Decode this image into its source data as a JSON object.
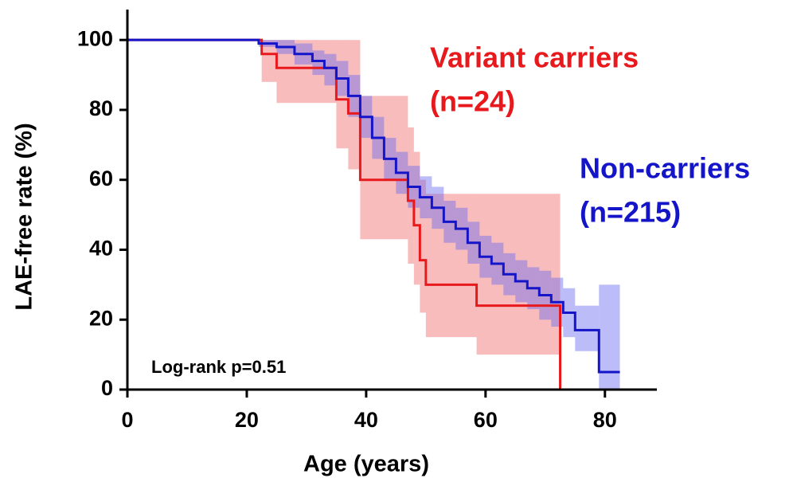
{
  "chart_data": {
    "type": "step",
    "x_label": "Age (years)",
    "y_label": "LAE-free rate (%)",
    "annotation": "Log-rank p=0.51",
    "xlim": [
      0,
      88.7
    ],
    "ylim": [
      0,
      108.7
    ],
    "xticks": [
      0,
      20,
      40,
      60,
      80
    ],
    "yticks": [
      0,
      20,
      40,
      60,
      80,
      100
    ],
    "series": [
      {
        "name": "Variant carriers",
        "n_label": "(n=24)",
        "color": "#e8191c",
        "band_color": "#f06a6a",
        "x": [
          0,
          22.5,
          25,
          35,
          37,
          39,
          47,
          48,
          49,
          50,
          58.5,
          72.5
        ],
        "values": [
          100,
          96,
          92,
          83,
          79,
          60,
          54,
          47,
          37,
          30,
          24,
          0
        ],
        "lower": [
          100,
          88,
          82,
          69,
          63,
          43,
          36,
          30,
          22,
          15,
          10,
          0
        ],
        "upper": [
          100,
          100,
          100,
          100,
          100,
          84,
          75,
          68,
          60,
          56,
          56,
          0
        ]
      },
      {
        "name": "Non-carriers",
        "n_label": "(n=215)",
        "color": "#1414c8",
        "band_color": "#6a6af0",
        "x": [
          0,
          22,
          25,
          28,
          31,
          33,
          35,
          37,
          39,
          41,
          43,
          45,
          47,
          49,
          51,
          53,
          55,
          57,
          59,
          61,
          63,
          65,
          67,
          69,
          71,
          73,
          75,
          79,
          82.5
        ],
        "values": [
          100,
          99,
          98,
          96,
          94,
          92,
          89,
          84,
          78,
          72,
          66,
          62,
          58,
          55,
          52,
          48,
          46,
          42,
          38,
          36,
          33,
          31,
          29,
          27,
          25,
          22,
          17,
          5,
          5
        ],
        "lower": [
          100,
          98,
          96,
          93,
          90,
          87,
          84,
          78,
          72,
          66,
          60,
          56,
          52,
          49,
          46,
          42,
          40,
          36,
          32,
          30,
          27,
          25,
          23,
          20,
          18,
          15,
          11,
          0,
          0
        ],
        "upper": [
          100,
          100,
          100,
          99,
          97,
          96,
          94,
          90,
          84,
          78,
          72,
          68,
          64,
          61,
          58,
          54,
          52,
          48,
          44,
          42,
          39,
          37,
          35,
          34,
          32,
          29,
          24,
          30,
          30
        ]
      }
    ]
  }
}
